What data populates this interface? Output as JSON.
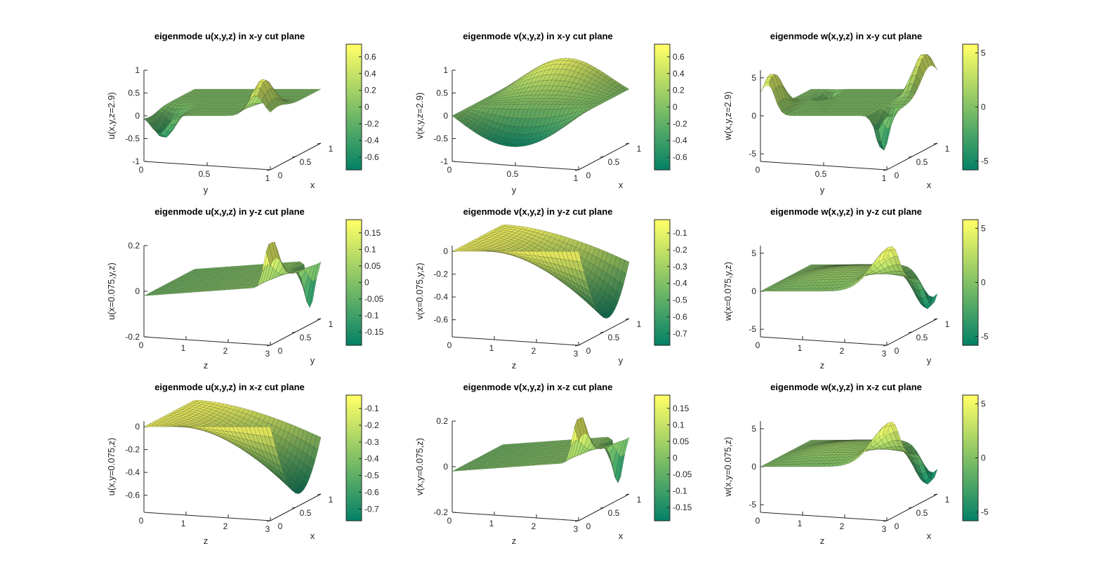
{
  "figure": {
    "background": "#ffffff"
  },
  "colormap": [
    "#007f66",
    "#3f9f66",
    "#7fbf66",
    "#bfdf66",
    "#ffff66"
  ],
  "chart_data": [
    {
      "type": "surface",
      "title": "eigenmode u(x,y,z) in x-y cut plane",
      "xlabel": "y",
      "ylabel": "x",
      "zlabel": "u(x,y,z=2.9)",
      "xlim": [
        0,
        1
      ],
      "ylim": [
        0,
        1
      ],
      "zlim": [
        -1,
        1
      ],
      "xticks": [
        "0",
        "0.5",
        "1"
      ],
      "yticks": [
        "0",
        "0.5",
        "1"
      ],
      "zticks": [
        "-1",
        "-0.5",
        "0",
        "0.5",
        "1"
      ],
      "clim": [
        -0.75,
        0.75
      ],
      "cticks": [
        "-0.6",
        "-0.4",
        "-0.2",
        "0",
        "0.2",
        "0.4",
        "0.6"
      ],
      "cticks_values": [
        -0.6,
        -0.4,
        -0.2,
        0,
        0.2,
        0.4,
        0.6
      ],
      "shape": "u_xy"
    },
    {
      "type": "surface",
      "title": "eigenmode v(x,y,z) in x-y cut plane",
      "xlabel": "y",
      "ylabel": "x",
      "zlabel": "v(x,y,z=2.9)",
      "xlim": [
        0,
        1
      ],
      "ylim": [
        0,
        1
      ],
      "zlim": [
        -1,
        1
      ],
      "xticks": [
        "0",
        "0.5",
        "1"
      ],
      "yticks": [
        "0",
        "0.5",
        "1"
      ],
      "zticks": [
        "-1",
        "-0.5",
        "0",
        "0.5",
        "1"
      ],
      "clim": [
        -0.75,
        0.75
      ],
      "cticks": [
        "-0.6",
        "-0.4",
        "-0.2",
        "0",
        "0.2",
        "0.4",
        "0.6"
      ],
      "cticks_values": [
        -0.6,
        -0.4,
        -0.2,
        0,
        0.2,
        0.4,
        0.6
      ],
      "shape": "v_xy"
    },
    {
      "type": "surface",
      "title": "eigenmode w(x,y,z) in x-y cut plane",
      "xlabel": "y",
      "ylabel": "x",
      "zlabel": "w(x,y,z=2.9)",
      "xlim": [
        0,
        1
      ],
      "ylim": [
        0,
        1
      ],
      "zlim": [
        -6,
        6
      ],
      "xticks": [
        "0",
        "0.5",
        "1"
      ],
      "yticks": [
        "0",
        "0.5",
        "1"
      ],
      "zticks": [
        "-5",
        "0",
        "5"
      ],
      "clim": [
        -5.8,
        5.8
      ],
      "cticks": [
        "-5",
        "0",
        "5"
      ],
      "cticks_values": [
        -5,
        0,
        5
      ],
      "shape": "w_xy"
    },
    {
      "type": "surface",
      "title": "eigenmode u(x,y,z) in y-z cut plane",
      "xlabel": "z",
      "ylabel": "y",
      "zlabel": "u(x=0.075,y,z)",
      "xlim": [
        0,
        3
      ],
      "ylim": [
        0,
        1
      ],
      "zlim": [
        -0.2,
        0.2
      ],
      "xticks": [
        "0",
        "1",
        "2",
        "3"
      ],
      "yticks": [
        "0",
        "0.5",
        "1"
      ],
      "zticks": [
        "-0.2",
        "0",
        "0.2"
      ],
      "clim": [
        -0.19,
        0.19
      ],
      "cticks": [
        "-0.15",
        "-0.1",
        "-0.05",
        "0",
        "0.05",
        "0.1",
        "0.15"
      ],
      "cticks_values": [
        -0.15,
        -0.1,
        -0.05,
        0,
        0.05,
        0.1,
        0.15
      ],
      "shape": "u_yz"
    },
    {
      "type": "surface",
      "title": "eigenmode v(x,y,z) in y-z cut plane",
      "xlabel": "z",
      "ylabel": "y",
      "zlabel": "v(x=0.075,y,z)",
      "xlim": [
        0,
        3
      ],
      "ylim": [
        0,
        1
      ],
      "zlim": [
        -0.75,
        0.05
      ],
      "xticks": [
        "0",
        "1",
        "2",
        "3"
      ],
      "yticks": [
        "0",
        "0.5",
        "1"
      ],
      "zticks": [
        "-0.6",
        "-0.4",
        "-0.2",
        "0"
      ],
      "clim": [
        -0.77,
        -0.02
      ],
      "cticks": [
        "-0.7",
        "-0.6",
        "-0.5",
        "-0.4",
        "-0.3",
        "-0.2",
        "-0.1"
      ],
      "cticks_values": [
        -0.7,
        -0.6,
        -0.5,
        -0.4,
        -0.3,
        -0.2,
        -0.1
      ],
      "shape": "v_yz"
    },
    {
      "type": "surface",
      "title": "eigenmode w(x,y,z) in y-z cut plane",
      "xlabel": "z",
      "ylabel": "y",
      "zlabel": "w(x=0.075,y,z)",
      "xlim": [
        0,
        3
      ],
      "ylim": [
        0,
        1
      ],
      "zlim": [
        -6,
        6
      ],
      "xticks": [
        "0",
        "1",
        "2",
        "3"
      ],
      "yticks": [
        "0",
        "0.5",
        "1"
      ],
      "zticks": [
        "-5",
        "0",
        "5"
      ],
      "clim": [
        -5.8,
        5.8
      ],
      "cticks": [
        "-5",
        "0",
        "5"
      ],
      "cticks_values": [
        -5,
        0,
        5
      ],
      "shape": "w_yz"
    },
    {
      "type": "surface",
      "title": "eigenmode u(x,y,z) in x-z cut plane",
      "xlabel": "z",
      "ylabel": "x",
      "zlabel": "u(x,y=0.075,z)",
      "xlim": [
        0,
        3
      ],
      "ylim": [
        0,
        1
      ],
      "zlim": [
        -0.75,
        0.05
      ],
      "xticks": [
        "0",
        "1",
        "2",
        "3"
      ],
      "yticks": [
        "0",
        "0.5",
        "1"
      ],
      "zticks": [
        "-0.6",
        "-0.4",
        "-0.2",
        "0"
      ],
      "clim": [
        -0.77,
        -0.02
      ],
      "cticks": [
        "-0.7",
        "-0.6",
        "-0.5",
        "-0.4",
        "-0.3",
        "-0.2",
        "-0.1"
      ],
      "cticks_values": [
        -0.7,
        -0.6,
        -0.5,
        -0.4,
        -0.3,
        -0.2,
        -0.1
      ],
      "shape": "u_xz"
    },
    {
      "type": "surface",
      "title": "eigenmode v(x,y,z) in x-z cut plane",
      "xlabel": "z",
      "ylabel": "x",
      "zlabel": "v(x,y=0.075,z)",
      "xlim": [
        0,
        3
      ],
      "ylim": [
        0,
        1
      ],
      "zlim": [
        -0.2,
        0.2
      ],
      "xticks": [
        "0",
        "1",
        "2",
        "3"
      ],
      "yticks": [
        "0",
        "0.5",
        "1"
      ],
      "zticks": [
        "-0.2",
        "0",
        "0.2"
      ],
      "clim": [
        -0.19,
        0.19
      ],
      "cticks": [
        "-0.15",
        "-0.1",
        "-0.05",
        "0",
        "0.05",
        "0.1",
        "0.15"
      ],
      "cticks_values": [
        -0.15,
        -0.1,
        -0.05,
        0,
        0.05,
        0.1,
        0.15
      ],
      "shape": "v_xz"
    },
    {
      "type": "surface",
      "title": "eigenmode w(x,y,z) in x-z cut plane",
      "xlabel": "z",
      "ylabel": "x",
      "zlabel": "w(x,y=0.075,z)",
      "xlim": [
        0,
        3
      ],
      "ylim": [
        0,
        1
      ],
      "zlim": [
        -6,
        6
      ],
      "xticks": [
        "0",
        "1",
        "2",
        "3"
      ],
      "yticks": [
        "0",
        "0.5",
        "1"
      ],
      "zticks": [
        "-5",
        "0",
        "5"
      ],
      "clim": [
        -5.8,
        5.8
      ],
      "cticks": [
        "-5",
        "0",
        "5"
      ],
      "cticks_values": [
        -5,
        0,
        5
      ],
      "shape": "w_xz"
    }
  ]
}
